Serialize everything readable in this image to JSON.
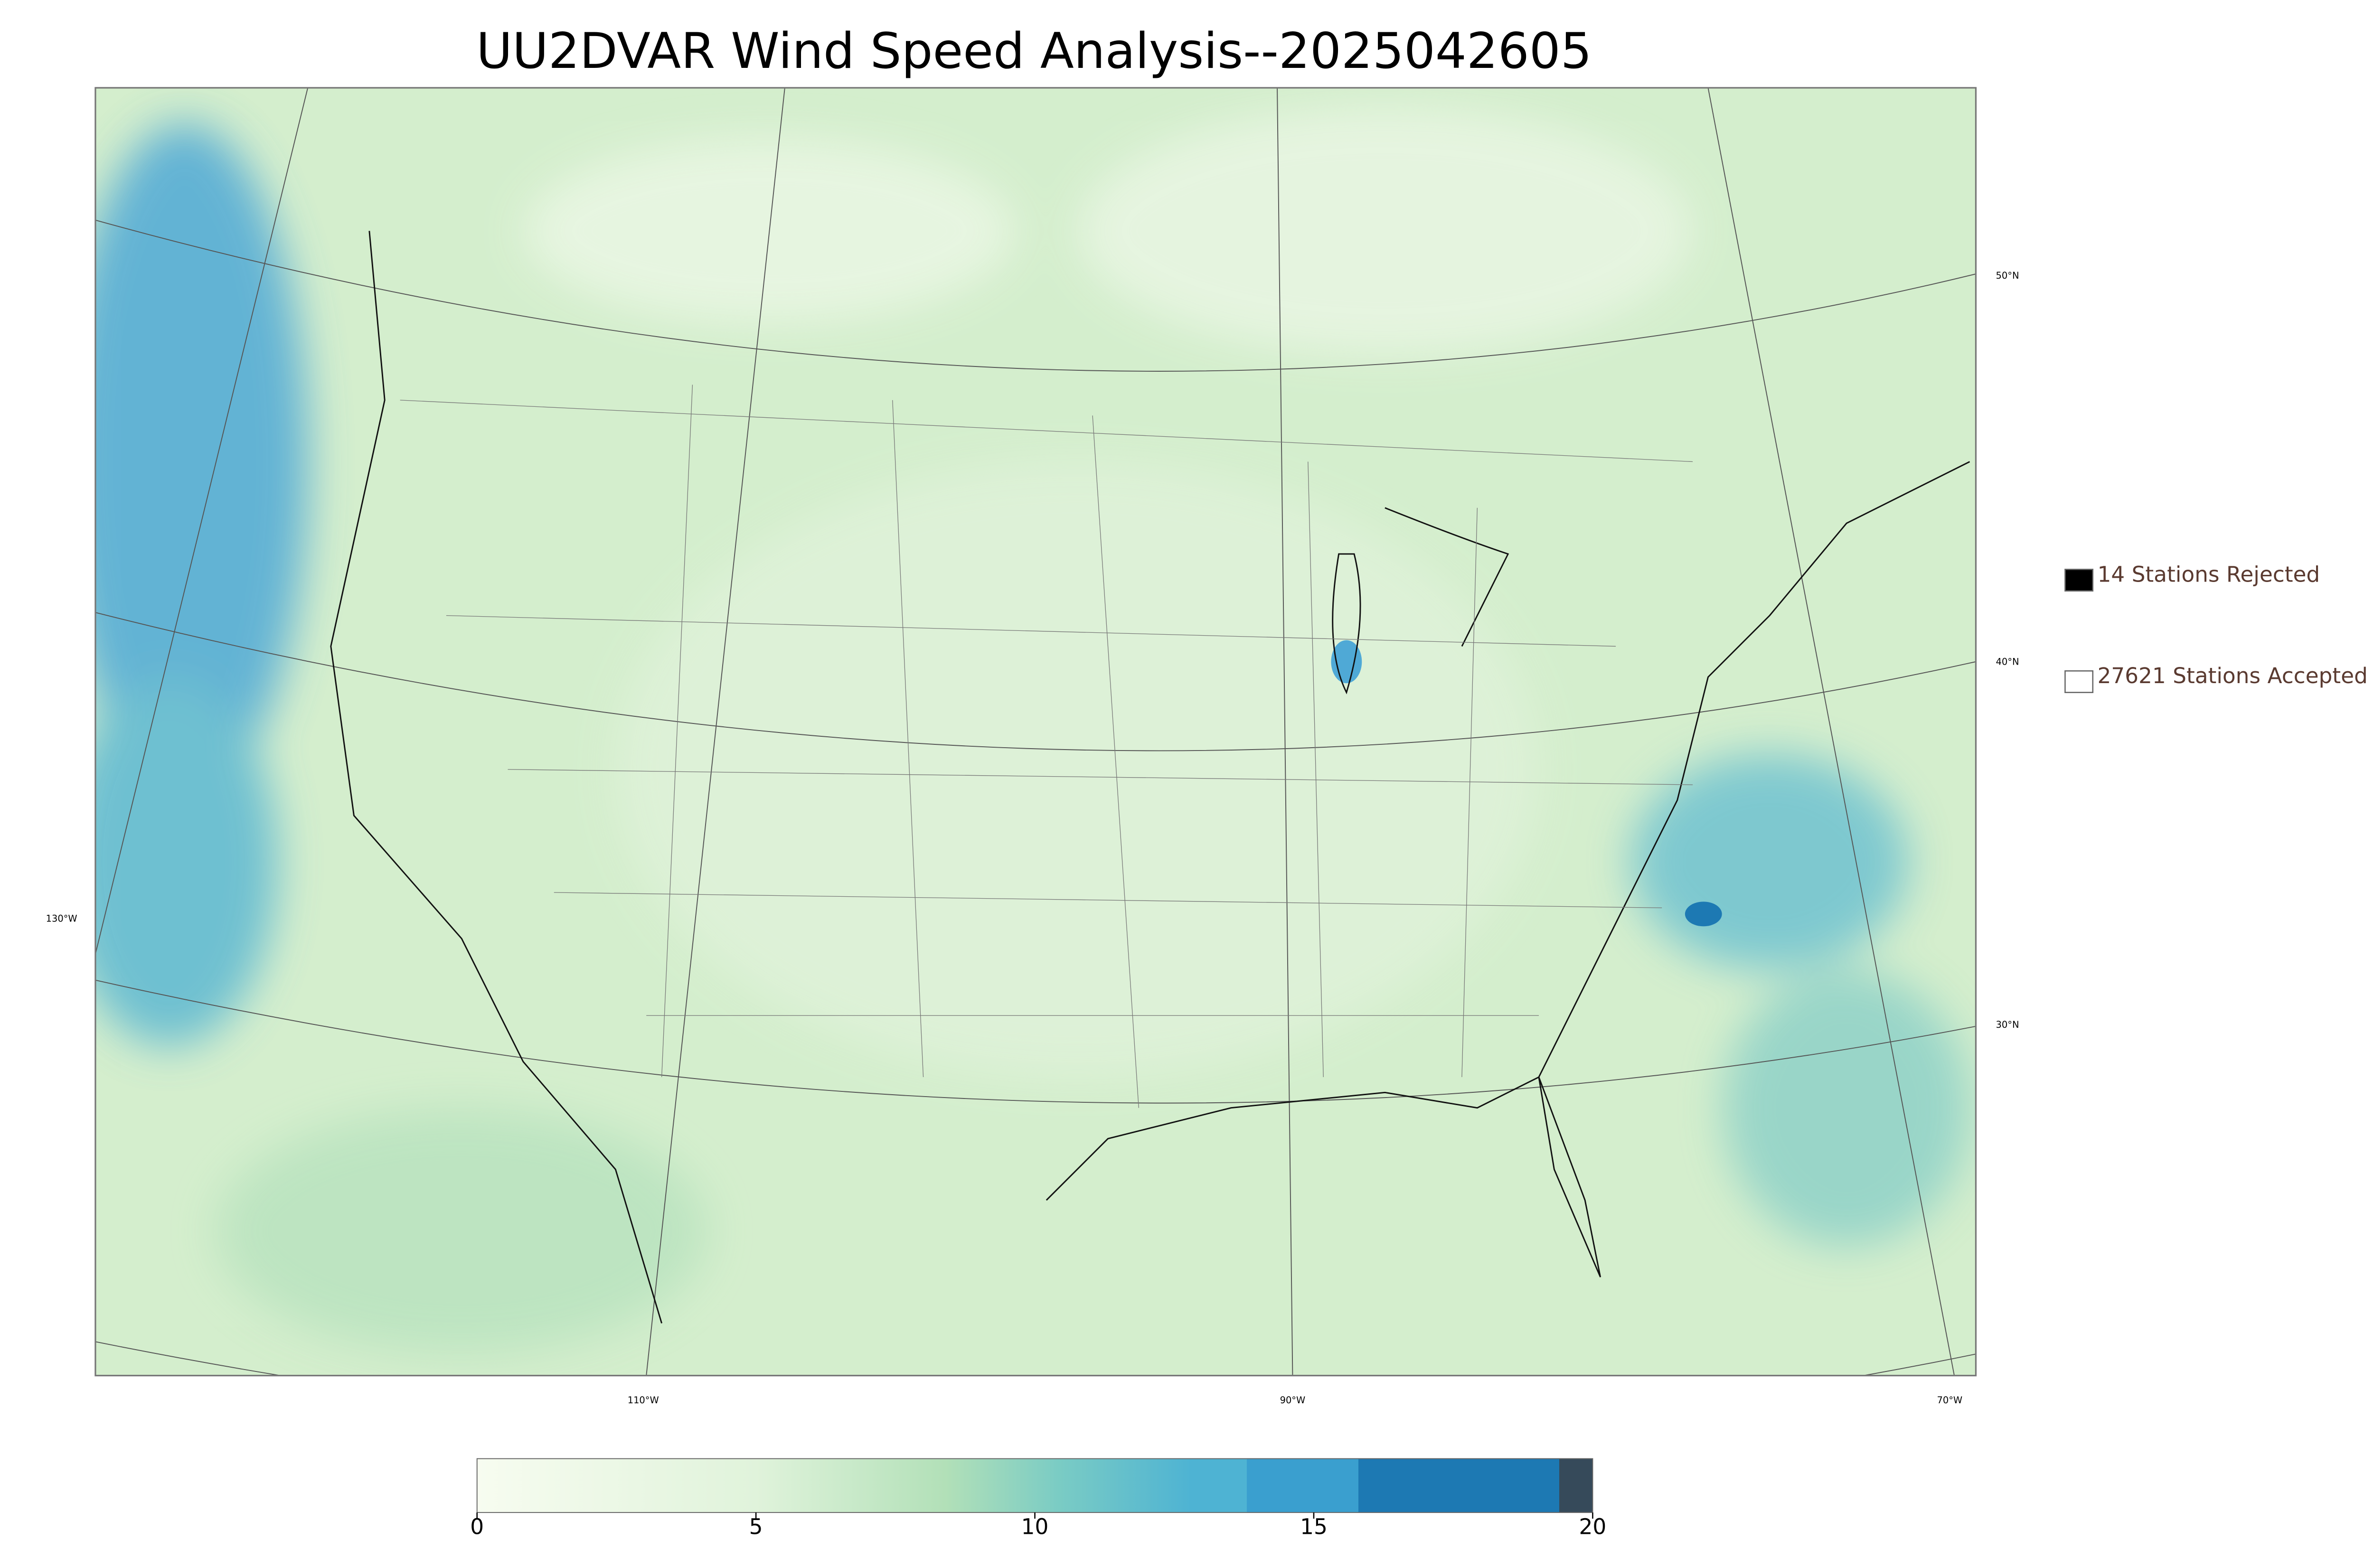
{
  "header": {
    "title": "UU2DVAR Wind Speed Analysis--2025042605"
  },
  "map": {
    "lat_labels": [
      "50°N",
      "40°N",
      "30°N"
    ],
    "lon_labels": [
      "130°W",
      "110°W",
      "90°W",
      "70°W"
    ]
  },
  "legend": {
    "entries": [
      {
        "label": "14 Stations Rejected",
        "color": "#000000"
      },
      {
        "label": "27621 Stations Accepted",
        "color": "#ffffff"
      }
    ]
  },
  "colorbar": {
    "range": [
      0,
      20
    ],
    "ticks": [
      0,
      5,
      10,
      15,
      20
    ]
  }
}
